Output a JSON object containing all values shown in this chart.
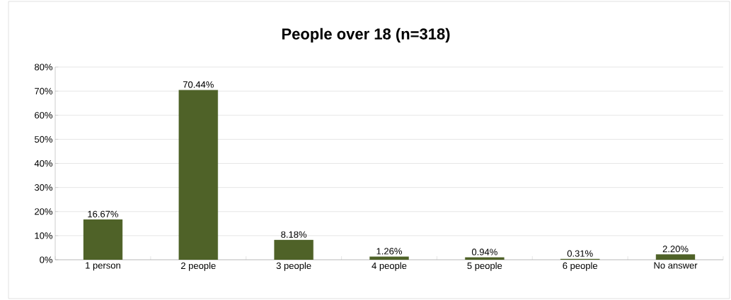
{
  "chart_data": {
    "type": "bar",
    "title": "People over 18 (n=318)",
    "categories": [
      "1 person",
      "2 people",
      "3 people",
      "4 people",
      "5 people",
      "6 people",
      "No answer"
    ],
    "values": [
      16.67,
      70.44,
      8.18,
      1.26,
      0.94,
      0.31,
      2.2
    ],
    "value_labels": [
      "16.67%",
      "70.44%",
      "8.18%",
      "1.26%",
      "0.94%",
      "0.31%",
      "2.20%"
    ],
    "color": "#4f6228",
    "ylim": [
      0,
      80
    ],
    "yticks": [
      {
        "value": 0,
        "label": "0%"
      },
      {
        "value": 10,
        "label": "10%"
      },
      {
        "value": 20,
        "label": "20%"
      },
      {
        "value": 30,
        "label": "30%"
      },
      {
        "value": 40,
        "label": "40%"
      },
      {
        "value": 50,
        "label": "50%"
      },
      {
        "value": 60,
        "label": "60%"
      },
      {
        "value": 70,
        "label": "70%"
      },
      {
        "value": 80,
        "label": "80%"
      }
    ],
    "grid": "y"
  }
}
